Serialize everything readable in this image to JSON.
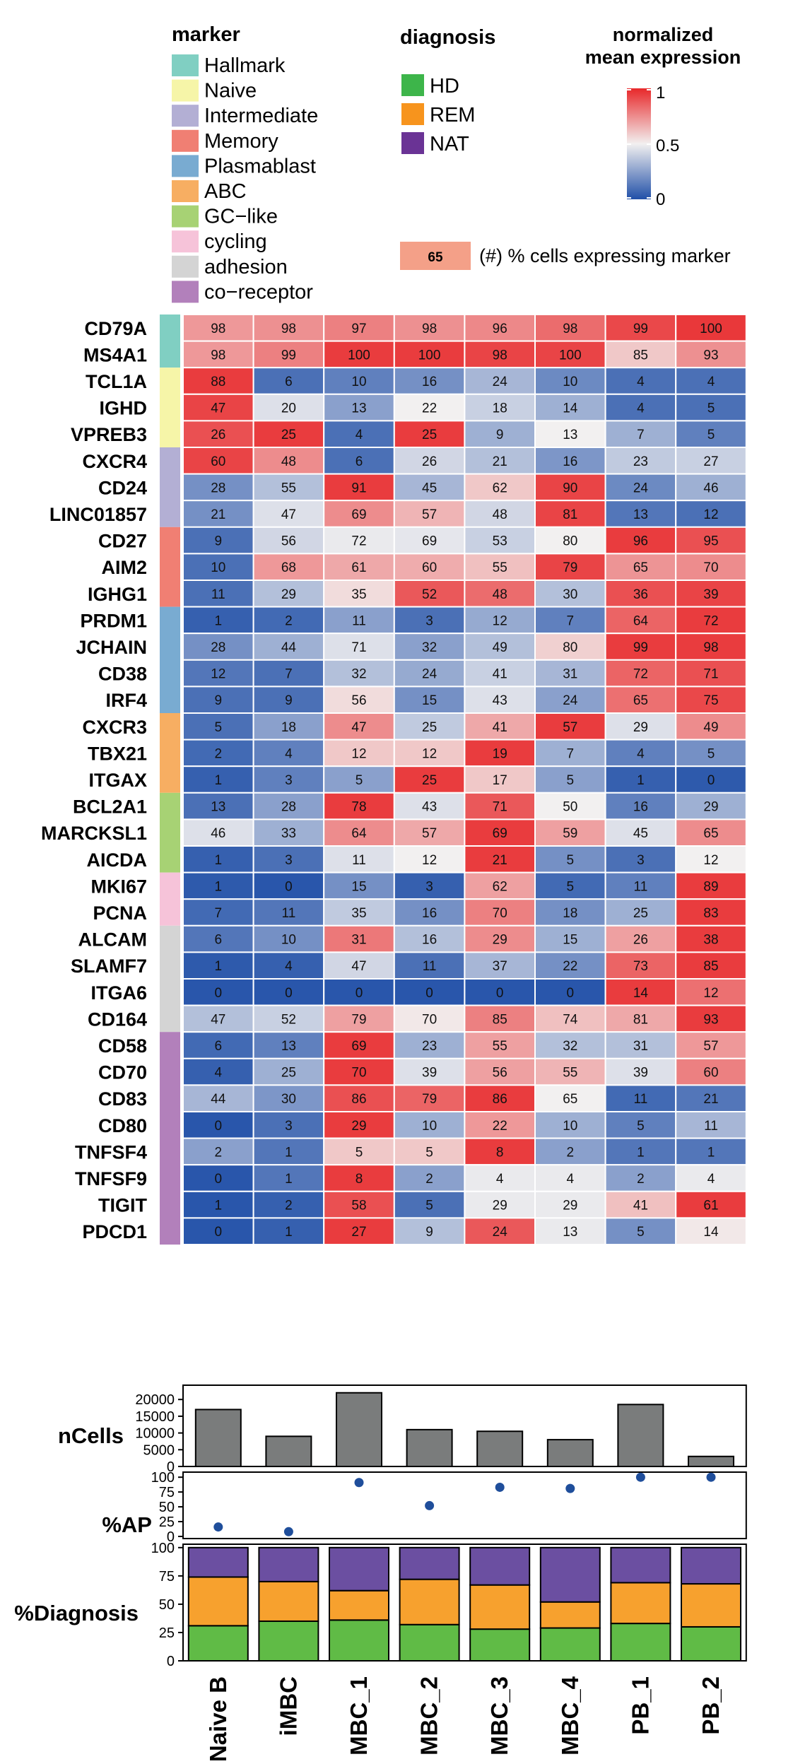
{
  "chart_data": [
    {
      "type": "heatmap",
      "title": "",
      "columns": [
        "Naive B",
        "iMBC",
        "MBC_1",
        "MBC_2",
        "MBC_3",
        "MBC_4",
        "PB_1",
        "PB_2"
      ],
      "rows": [
        {
          "gene": "CD79A",
          "marker": "Hallmark",
          "pct": [
            98,
            98,
            97,
            98,
            96,
            98,
            99,
            100
          ],
          "expr": [
            0.72,
            0.74,
            0.78,
            0.74,
            0.76,
            0.83,
            0.92,
            0.96
          ]
        },
        {
          "gene": "MS4A1",
          "marker": "Hallmark",
          "pct": [
            98,
            99,
            100,
            100,
            98,
            100,
            85,
            93
          ],
          "expr": [
            0.72,
            0.78,
            0.95,
            0.95,
            0.93,
            0.93,
            0.6,
            0.74
          ]
        },
        {
          "gene": "TCL1A",
          "marker": "Naive",
          "pct": [
            88,
            6,
            10,
            16,
            24,
            10,
            4,
            4
          ],
          "expr": [
            0.95,
            0.1,
            0.15,
            0.2,
            0.32,
            0.18,
            0.1,
            0.1
          ]
        },
        {
          "gene": "IGHD",
          "marker": "Naive",
          "pct": [
            47,
            20,
            13,
            22,
            18,
            14,
            4,
            5
          ],
          "expr": [
            0.93,
            0.45,
            0.25,
            0.5,
            0.4,
            0.3,
            0.1,
            0.1
          ]
        },
        {
          "gene": "VPREB3",
          "marker": "Naive",
          "pct": [
            26,
            25,
            4,
            25,
            9,
            13,
            7,
            5
          ],
          "expr": [
            0.9,
            0.95,
            0.1,
            0.95,
            0.3,
            0.5,
            0.3,
            0.15
          ]
        },
        {
          "gene": "CXCR4",
          "marker": "Intermediate",
          "pct": [
            60,
            48,
            6,
            26,
            21,
            16,
            23,
            27
          ],
          "expr": [
            0.93,
            0.75,
            0.1,
            0.42,
            0.35,
            0.22,
            0.38,
            0.4
          ]
        },
        {
          "gene": "CD24",
          "marker": "Intermediate",
          "pct": [
            28,
            55,
            91,
            45,
            62,
            90,
            24,
            46
          ],
          "expr": [
            0.2,
            0.35,
            0.95,
            0.32,
            0.6,
            0.93,
            0.18,
            0.3
          ]
        },
        {
          "gene": "LINC01857",
          "marker": "Intermediate",
          "pct": [
            21,
            47,
            69,
            57,
            48,
            81,
            13,
            12
          ],
          "expr": [
            0.2,
            0.45,
            0.75,
            0.65,
            0.42,
            0.93,
            0.12,
            0.1
          ]
        },
        {
          "gene": "CD27",
          "marker": "Memory",
          "pct": [
            9,
            56,
            72,
            69,
            53,
            80,
            96,
            95
          ],
          "expr": [
            0.1,
            0.42,
            0.48,
            0.47,
            0.4,
            0.5,
            0.95,
            0.9
          ]
        },
        {
          "gene": "AIM2",
          "marker": "Memory",
          "pct": [
            10,
            68,
            61,
            60,
            55,
            79,
            65,
            70
          ],
          "expr": [
            0.1,
            0.72,
            0.68,
            0.67,
            0.62,
            0.93,
            0.73,
            0.75
          ]
        },
        {
          "gene": "IGHG1",
          "marker": "Memory",
          "pct": [
            11,
            29,
            35,
            52,
            48,
            30,
            36,
            39
          ],
          "expr": [
            0.1,
            0.35,
            0.55,
            0.88,
            0.83,
            0.35,
            0.9,
            0.93
          ]
        },
        {
          "gene": "PRDM1",
          "marker": "Plasmablast",
          "pct": [
            1,
            2,
            11,
            3,
            12,
            7,
            64,
            72
          ],
          "expr": [
            0.05,
            0.08,
            0.25,
            0.1,
            0.28,
            0.15,
            0.85,
            0.95
          ]
        },
        {
          "gene": "JCHAIN",
          "marker": "Plasmablast",
          "pct": [
            28,
            44,
            71,
            32,
            49,
            80,
            99,
            98
          ],
          "expr": [
            0.2,
            0.3,
            0.45,
            0.25,
            0.35,
            0.58,
            0.95,
            0.95
          ]
        },
        {
          "gene": "CD38",
          "marker": "Plasmablast",
          "pct": [
            12,
            7,
            32,
            24,
            41,
            31,
            72,
            71
          ],
          "expr": [
            0.12,
            0.1,
            0.35,
            0.28,
            0.4,
            0.32,
            0.85,
            0.9
          ]
        },
        {
          "gene": "IRF4",
          "marker": "Plasmablast",
          "pct": [
            9,
            9,
            56,
            15,
            43,
            24,
            65,
            75
          ],
          "expr": [
            0.1,
            0.1,
            0.55,
            0.2,
            0.45,
            0.25,
            0.82,
            0.92
          ]
        },
        {
          "gene": "CXCR3",
          "marker": "ABC",
          "pct": [
            5,
            18,
            47,
            25,
            41,
            57,
            29,
            49
          ],
          "expr": [
            0.1,
            0.25,
            0.75,
            0.38,
            0.68,
            0.95,
            0.45,
            0.75
          ]
        },
        {
          "gene": "TBX21",
          "marker": "ABC",
          "pct": [
            2,
            4,
            12,
            12,
            19,
            7,
            4,
            5
          ],
          "expr": [
            0.08,
            0.15,
            0.6,
            0.6,
            0.95,
            0.3,
            0.15,
            0.2
          ]
        },
        {
          "gene": "ITGAX",
          "marker": "ABC",
          "pct": [
            1,
            3,
            5,
            25,
            17,
            5,
            1,
            0
          ],
          "expr": [
            0.05,
            0.15,
            0.25,
            0.95,
            0.6,
            0.25,
            0.05,
            0.03
          ]
        },
        {
          "gene": "BCL2A1",
          "marker": "GC-like",
          "pct": [
            13,
            28,
            78,
            43,
            71,
            50,
            16,
            29
          ],
          "expr": [
            0.1,
            0.25,
            0.95,
            0.45,
            0.88,
            0.5,
            0.15,
            0.3
          ]
        },
        {
          "gene": "MARCKSL1",
          "marker": "GC-like",
          "pct": [
            46,
            33,
            64,
            57,
            69,
            59,
            45,
            65
          ],
          "expr": [
            0.45,
            0.3,
            0.75,
            0.68,
            0.95,
            0.7,
            0.45,
            0.75
          ]
        },
        {
          "gene": "AICDA",
          "marker": "GC-like",
          "pct": [
            1,
            3,
            11,
            12,
            21,
            5,
            3,
            12
          ],
          "expr": [
            0.05,
            0.1,
            0.45,
            0.5,
            0.95,
            0.2,
            0.1,
            0.5
          ]
        },
        {
          "gene": "MKI67",
          "marker": "cycling",
          "pct": [
            1,
            0,
            15,
            3,
            62,
            5,
            11,
            89
          ],
          "expr": [
            0.03,
            0.02,
            0.2,
            0.05,
            0.7,
            0.08,
            0.15,
            0.95
          ]
        },
        {
          "gene": "PCNA",
          "marker": "cycling",
          "pct": [
            7,
            11,
            35,
            16,
            70,
            18,
            25,
            83
          ],
          "expr": [
            0.08,
            0.12,
            0.38,
            0.2,
            0.78,
            0.2,
            0.3,
            0.95
          ]
        },
        {
          "gene": "ALCAM",
          "marker": "adhesion",
          "pct": [
            6,
            10,
            31,
            16,
            29,
            15,
            26,
            38
          ],
          "expr": [
            0.12,
            0.2,
            0.8,
            0.35,
            0.75,
            0.3,
            0.7,
            0.95
          ]
        },
        {
          "gene": "SLAMF7",
          "marker": "adhesion",
          "pct": [
            1,
            4,
            47,
            11,
            37,
            22,
            73,
            85
          ],
          "expr": [
            0.03,
            0.05,
            0.42,
            0.1,
            0.32,
            0.2,
            0.85,
            0.95
          ]
        },
        {
          "gene": "ITGA6",
          "marker": "adhesion",
          "pct": [
            0,
            0,
            0,
            0,
            0,
            0,
            14,
            12
          ],
          "expr": [
            0.02,
            0.02,
            0.02,
            0.02,
            0.02,
            0.02,
            0.95,
            0.82
          ]
        },
        {
          "gene": "CD164",
          "marker": "adhesion",
          "pct": [
            47,
            52,
            79,
            70,
            85,
            74,
            81,
            93
          ],
          "expr": [
            0.35,
            0.4,
            0.7,
            0.52,
            0.78,
            0.62,
            0.68,
            0.95
          ]
        },
        {
          "gene": "CD58",
          "marker": "co-receptor",
          "pct": [
            6,
            13,
            69,
            23,
            55,
            32,
            31,
            57
          ],
          "expr": [
            0.08,
            0.15,
            0.95,
            0.3,
            0.7,
            0.35,
            0.35,
            0.72
          ]
        },
        {
          "gene": "CD70",
          "marker": "co-receptor",
          "pct": [
            4,
            25,
            70,
            39,
            56,
            55,
            39,
            60
          ],
          "expr": [
            0.05,
            0.3,
            0.95,
            0.45,
            0.7,
            0.65,
            0.45,
            0.78
          ]
        },
        {
          "gene": "CD83",
          "marker": "co-receptor",
          "pct": [
            44,
            30,
            86,
            79,
            86,
            65,
            11,
            21
          ],
          "expr": [
            0.32,
            0.22,
            0.9,
            0.85,
            0.95,
            0.5,
            0.08,
            0.12
          ]
        },
        {
          "gene": "CD80",
          "marker": "co-receptor",
          "pct": [
            0,
            3,
            29,
            10,
            22,
            10,
            5,
            11
          ],
          "expr": [
            0.02,
            0.1,
            0.95,
            0.3,
            0.72,
            0.3,
            0.15,
            0.32
          ]
        },
        {
          "gene": "TNFSF4",
          "marker": "co-receptor",
          "pct": [
            2,
            1,
            5,
            5,
            8,
            2,
            1,
            1
          ],
          "expr": [
            0.25,
            0.12,
            0.6,
            0.6,
            0.95,
            0.25,
            0.12,
            0.12
          ]
        },
        {
          "gene": "TNFSF9",
          "marker": "co-receptor",
          "pct": [
            0,
            1,
            8,
            2,
            4,
            4,
            2,
            4
          ],
          "expr": [
            0.02,
            0.12,
            0.95,
            0.25,
            0.48,
            0.48,
            0.25,
            0.48
          ]
        },
        {
          "gene": "TIGIT",
          "marker": "co-receptor",
          "pct": [
            1,
            2,
            58,
            5,
            29,
            29,
            41,
            61
          ],
          "expr": [
            0.02,
            0.05,
            0.9,
            0.1,
            0.48,
            0.48,
            0.62,
            0.95
          ]
        },
        {
          "gene": "PDCD1",
          "marker": "co-receptor",
          "pct": [
            0,
            1,
            27,
            9,
            24,
            13,
            5,
            14
          ],
          "expr": [
            0.02,
            0.05,
            0.95,
            0.35,
            0.88,
            0.48,
            0.2,
            0.52
          ]
        }
      ],
      "cell_annotation": "(#) % cells expressing marker",
      "legend_example_value": "65",
      "colorbar": {
        "title_line1": "normalized",
        "title_line2": "mean expression",
        "range": [
          0,
          1
        ],
        "ticks": [
          "1",
          "0.5",
          "0"
        ],
        "low": "#2150a8",
        "mid": "#f2f0f0",
        "high": "#e8282a"
      }
    },
    {
      "type": "bar",
      "ylabel": "nCells",
      "categories": [
        "Naive B",
        "iMBC",
        "MBC_1",
        "MBC_2",
        "MBC_3",
        "MBC_4",
        "PB_1",
        "PB_2"
      ],
      "values": [
        17000,
        9000,
        22000,
        11000,
        10500,
        8000,
        18500,
        3000
      ],
      "ylim": [
        0,
        23000
      ],
      "tick_labels": [
        "0",
        "5000",
        "10000",
        "15000",
        "20000"
      ]
    },
    {
      "type": "scatter",
      "ylabel": "%AP",
      "categories": [
        "Naive B",
        "iMBC",
        "MBC_1",
        "MBC_2",
        "MBC_3",
        "MBC_4",
        "PB_1",
        "PB_2"
      ],
      "values": [
        16,
        8,
        91,
        52,
        83,
        81,
        100,
        100
      ],
      "ylim": [
        0,
        105
      ],
      "tick_labels": [
        "0",
        "25",
        "50",
        "75",
        "100"
      ]
    },
    {
      "type": "bar",
      "stacked": true,
      "ylabel": "%Diagnosis",
      "categories": [
        "Naive B",
        "iMBC",
        "MBC_1",
        "MBC_2",
        "MBC_3",
        "MBC_4",
        "PB_1",
        "PB_2"
      ],
      "series": [
        {
          "name": "HD",
          "values": [
            31,
            35,
            36,
            32,
            28,
            29,
            33,
            30
          ]
        },
        {
          "name": "REM",
          "values": [
            43,
            35,
            26,
            40,
            39,
            23,
            36,
            38
          ]
        },
        {
          "name": "NAT",
          "values": [
            26,
            30,
            38,
            28,
            33,
            48,
            31,
            32
          ]
        }
      ],
      "ylim": [
        0,
        103
      ],
      "tick_labels": [
        "0",
        "25",
        "50",
        "75",
        "100"
      ]
    }
  ],
  "legend": {
    "marker_title": "marker",
    "markers": [
      {
        "label": "Hallmark",
        "key": "Hallmark",
        "color": "#80cfc2"
      },
      {
        "label": "Naive",
        "key": "Naive",
        "color": "#f6f5a8"
      },
      {
        "label": "Intermediate",
        "key": "Intermediate",
        "color": "#b3afd4"
      },
      {
        "label": "Memory",
        "key": "Memory",
        "color": "#f07f73"
      },
      {
        "label": "Plasmablast",
        "key": "Plasmablast",
        "color": "#79abd1"
      },
      {
        "label": "ABC",
        "key": "ABC",
        "color": "#f7ae62"
      },
      {
        "label": "GC−like",
        "key": "GC-like",
        "color": "#a7d274"
      },
      {
        "label": "cycling",
        "key": "cycling",
        "color": "#f6c3d9"
      },
      {
        "label": "adhesion",
        "key": "adhesion",
        "color": "#d4d4d4"
      },
      {
        "label": "co−receptor",
        "key": "co-receptor",
        "color": "#b280bb"
      }
    ],
    "diagnosis_title": "diagnosis",
    "diagnosis": [
      {
        "label": "HD",
        "color": "#3db54a"
      },
      {
        "label": "REM",
        "color": "#f7941d"
      },
      {
        "label": "NAT",
        "color": "#6a3395"
      }
    ]
  },
  "colors": {
    "bar_gray": "#7a7c7c",
    "dot_blue": "#1f4e9b",
    "hd_bar": "#60bb46",
    "rem_bar": "#f7a12e",
    "nat_bar": "#6b4fa1"
  }
}
